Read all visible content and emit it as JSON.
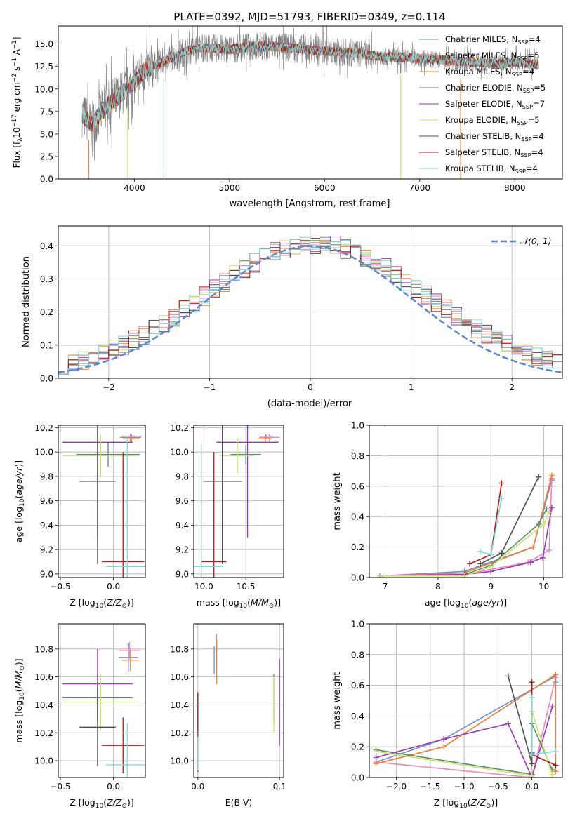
{
  "figure_title": "PLATE=0392, MJD=51793, FIBERID=0349, z=0.114",
  "colors": {
    "Chabrier MILES": "#6a8fd4",
    "Salpeter MILES": "#e789b8",
    "Kroupa MILES": "#ee7d2e",
    "Chabrier ELODIE": "#5b8c6e",
    "Salpeter ELODIE": "#9a38b4",
    "Kroupa ELODIE": "#c9e36a",
    "Chabrier STELIB": "#4d4d4d",
    "Salpeter STELIB": "#b61818",
    "Kroupa STELIB": "#7dd8de",
    "data": "#808080",
    "normal": "#5b88cc"
  },
  "chart_data": [
    {
      "id": "spectrum",
      "type": "line",
      "title": "PLATE=0392, MJD=51793, FIBERID=0349, z=0.114",
      "xlabel": "wavelength [Angstrom, rest frame]",
      "ylabel_parts": [
        "Flux [f",
        "λ",
        "10",
        "−17",
        " erg cm",
        "−2",
        " s",
        "−1",
        " A",
        "−1",
        "]"
      ],
      "xlim": [
        3200,
        8500
      ],
      "ylim": [
        0,
        17
      ],
      "xticks": [
        4000,
        5000,
        6000,
        7000,
        8000
      ],
      "yticks": [
        0.0,
        2.5,
        5.0,
        7.5,
        10.0,
        12.5,
        15.0
      ],
      "ytick_labels": [
        "0.0",
        "2.5",
        "5.0",
        "7.5",
        "10.0",
        "12.5",
        "15.0"
      ],
      "legend": [
        {
          "pre": "Chabrier MILES, N",
          "sub": "SSP",
          "post": "=4",
          "color": "#6a8fd4"
        },
        {
          "pre": "Salpeter MILES, N",
          "sub": "SSP",
          "post": "=5",
          "color": "#e789b8"
        },
        {
          "pre": "Kroupa MILES, N",
          "sub": "SSP",
          "post": "=4",
          "color": "#ee7d2e"
        },
        {
          "pre": "Chabrier ELODIE, N",
          "sub": "SSP",
          "post": "=5",
          "color": "#5b8c6e"
        },
        {
          "pre": "Salpeter ELODIE, N",
          "sub": "SSP",
          "post": "=7",
          "color": "#9a38b4"
        },
        {
          "pre": "Kroupa ELODIE, N",
          "sub": "SSP",
          "post": "=5",
          "color": "#c9e36a"
        },
        {
          "pre": "Chabrier STELIB, N",
          "sub": "SSP",
          "post": "=4",
          "color": "#4d4d4d"
        },
        {
          "pre": "Salpeter STELIB, N",
          "sub": "SSP",
          "post": "=4",
          "color": "#b61818"
        },
        {
          "pre": "Kroupa STELIB, N",
          "sub": "SSP",
          "post": "=4",
          "color": "#7dd8de"
        }
      ],
      "continuum": [
        [
          3450,
          7.2
        ],
        [
          3550,
          6.0
        ],
        [
          3700,
          8.0
        ],
        [
          3850,
          9.3
        ],
        [
          3950,
          10.2
        ],
        [
          4100,
          12.0
        ],
        [
          4300,
          13.0
        ],
        [
          4500,
          14.0
        ],
        [
          4700,
          14.6
        ],
        [
          5000,
          14.4
        ],
        [
          5300,
          14.8
        ],
        [
          5600,
          14.6
        ],
        [
          6000,
          14.2
        ],
        [
          6300,
          14.0
        ],
        [
          6600,
          13.6
        ],
        [
          7000,
          13.4
        ],
        [
          7400,
          13.1
        ],
        [
          7800,
          12.8
        ],
        [
          8000,
          13.0
        ],
        [
          8250,
          12.7
        ]
      ],
      "spikes_down": [
        [
          3520,
          0
        ],
        [
          3930,
          0
        ],
        [
          4310,
          0
        ],
        [
          6800,
          0
        ],
        [
          7430,
          0
        ]
      ]
    },
    {
      "id": "residuals",
      "type": "histogram",
      "xlabel": "(data-model)/error",
      "ylabel": "Normed distribution",
      "xlim": [
        -2.5,
        2.5
      ],
      "ylim": [
        0,
        0.46
      ],
      "xticks": [
        -2,
        -1,
        0,
        1,
        2
      ],
      "xtick_labels": [
        "−2",
        "−1",
        "0",
        "1",
        "2"
      ],
      "yticks": [
        0.0,
        0.1,
        0.2,
        0.3,
        0.4
      ],
      "ytick_labels": [
        "0.0",
        "0.1",
        "0.2",
        "0.3",
        "0.4"
      ],
      "bin_edges_range": [
        -2.5,
        2.5
      ],
      "n_bins": 50,
      "legend_label": "𝒩(0, 1)"
    },
    {
      "id": "age-vs-Z",
      "type": "errorbar",
      "xlabel": "Z [log10(Z/Z⊙)]",
      "ylabel": "age  [log10(age/yr)]",
      "xlim": [
        -0.52,
        0.3
      ],
      "ylim": [
        8.97,
        10.22
      ],
      "xticks": [
        -0.5,
        0.0
      ],
      "xtick_labels": [
        "−0.5",
        "0.0"
      ],
      "yticks": [
        9.0,
        9.2,
        9.4,
        9.6,
        9.8,
        10.0,
        10.2
      ],
      "ytick_labels": [
        "9.0",
        "9.2",
        "9.4",
        "9.6",
        "9.8",
        "10.0",
        "10.2"
      ],
      "points": [
        {
          "model": "Chabrier MILES",
          "x": 0.16,
          "xerr": 0.1,
          "y": 10.12,
          "yerr": 0.03
        },
        {
          "model": "Salpeter MILES",
          "x": 0.17,
          "xerr": 0.09,
          "y": 10.13,
          "yerr": 0.02
        },
        {
          "model": "Kroupa MILES",
          "x": 0.17,
          "xerr": 0.08,
          "y": 10.11,
          "yerr": 0.03
        },
        {
          "model": "Chabrier ELODIE",
          "x": -0.05,
          "xerr": 0.3,
          "y": 9.98,
          "yerr": 0.1
        },
        {
          "model": "Salpeter ELODIE",
          "x": -0.15,
          "xerr": 0.33,
          "y": 10.08,
          "yerr": 0.78
        },
        {
          "model": "Kroupa ELODIE",
          "x": -0.12,
          "xerr": 0.36,
          "y": 9.97,
          "yerr": 0.17
        },
        {
          "model": "Chabrier STELIB",
          "x": -0.15,
          "xerr": 0.17,
          "y": 9.76,
          "yerr": 0.68
        },
        {
          "model": "Salpeter STELIB",
          "x": 0.09,
          "xerr": 0.2,
          "y": 9.1,
          "yerr": 0.9
        },
        {
          "model": "Kroupa STELIB",
          "x": 0.13,
          "xerr": 0.2,
          "y": 9.06,
          "yerr": 1.07
        }
      ]
    },
    {
      "id": "age-vs-mass",
      "type": "errorbar",
      "xlabel": "mass [log10(M/M⊙)]",
      "xlim": [
        9.88,
        10.95
      ],
      "ylim": [
        8.97,
        10.22
      ],
      "xticks": [
        10.0,
        10.5
      ],
      "xtick_labels": [
        "10.0",
        "10.5"
      ],
      "yticks": [
        9.0,
        9.2,
        9.4,
        9.6,
        9.8,
        10.0,
        10.2
      ],
      "ytick_labels": [
        "9.0",
        "9.2",
        "9.4",
        "9.6",
        "9.8",
        "10.0",
        "10.2"
      ],
      "points": [
        {
          "model": "Chabrier MILES",
          "x": 10.74,
          "xerr": 0.09,
          "y": 10.13,
          "yerr": 0.02
        },
        {
          "model": "Salpeter MILES",
          "x": 10.78,
          "xerr": 0.12,
          "y": 10.12,
          "yerr": 0.03
        },
        {
          "model": "Kroupa MILES",
          "x": 10.73,
          "xerr": 0.08,
          "y": 10.11,
          "yerr": 0.03
        },
        {
          "model": "Chabrier ELODIE",
          "x": 10.5,
          "xerr": 0.18,
          "y": 9.98,
          "yerr": 0.08
        },
        {
          "model": "Salpeter ELODIE",
          "x": 10.52,
          "xerr": 0.37,
          "y": 10.08,
          "yerr": 0.78
        },
        {
          "model": "Kroupa ELODIE",
          "x": 10.4,
          "xerr": 0.2,
          "y": 9.97,
          "yerr": 0.15
        },
        {
          "model": "Chabrier STELIB",
          "x": 10.22,
          "xerr": 0.23,
          "y": 9.76,
          "yerr": 0.68
        },
        {
          "model": "Salpeter STELIB",
          "x": 10.12,
          "xerr": 0.15,
          "y": 9.1,
          "yerr": 0.9
        },
        {
          "model": "Kroupa STELIB",
          "x": 9.97,
          "xerr": 0.25,
          "y": 9.06,
          "yerr": 1.0
        }
      ]
    },
    {
      "id": "weight-vs-age",
      "type": "line",
      "xlabel": "age  [log10(age/yr)]",
      "ylabel": "mass weight",
      "xlim": [
        6.7,
        10.35
      ],
      "ylim": [
        0,
        1.0
      ],
      "xticks": [
        7,
        8,
        9,
        10
      ],
      "xtick_labels": [
        "7",
        "8",
        "9",
        "10"
      ],
      "yticks": [
        0.0,
        0.2,
        0.4,
        0.6,
        0.8,
        1.0
      ],
      "ytick_labels": [
        "0.0",
        "0.2",
        "0.4",
        "0.6",
        "0.8",
        "1.0"
      ],
      "series": [
        {
          "model": "Chabrier MILES",
          "x": [
            6.9,
            8.5,
            9.8,
            10.15
          ],
          "y": [
            0.01,
            0.04,
            0.2,
            0.64
          ]
        },
        {
          "model": "Salpeter MILES",
          "x": [
            6.9,
            8.5,
            9.7,
            10.1,
            10.15
          ],
          "y": [
            0.01,
            0.02,
            0.1,
            0.18,
            0.65
          ]
        },
        {
          "model": "Kroupa MILES",
          "x": [
            6.9,
            8.5,
            9.8,
            10.15
          ],
          "y": [
            0.01,
            0.03,
            0.2,
            0.67
          ]
        },
        {
          "model": "Chabrier ELODIE",
          "x": [
            6.9,
            8.5,
            9.0,
            9.9,
            10.05
          ],
          "y": [
            0.01,
            0.02,
            0.08,
            0.35,
            0.45
          ]
        },
        {
          "model": "Salpeter ELODIE",
          "x": [
            6.9,
            8.5,
            9.0,
            9.75,
            9.98,
            10.15
          ],
          "y": [
            0.01,
            0.02,
            0.04,
            0.1,
            0.13,
            0.46
          ]
        },
        {
          "model": "Kroupa ELODIE",
          "x": [
            6.9,
            8.5,
            9.0,
            10.0,
            10.1
          ],
          "y": [
            0.01,
            0.01,
            0.07,
            0.35,
            0.43
          ]
        },
        {
          "model": "Chabrier STELIB",
          "x": [
            8.8,
            9.2,
            9.9
          ],
          "y": [
            0.09,
            0.16,
            0.66
          ]
        },
        {
          "model": "Salpeter STELIB",
          "x": [
            8.6,
            9.0,
            9.2
          ],
          "y": [
            0.09,
            0.15,
            0.62
          ]
        },
        {
          "model": "Kroupa STELIB",
          "x": [
            8.8,
            9.0,
            9.2
          ],
          "y": [
            0.17,
            0.15,
            0.52
          ]
        }
      ]
    },
    {
      "id": "mass-vs-Z",
      "type": "errorbar",
      "xlabel": "Z [log10(Z/Z⊙)]",
      "ylabel": "mass [log10(M/M⊙)]",
      "xlim": [
        -0.52,
        0.3
      ],
      "ylim": [
        9.88,
        10.98
      ],
      "xticks": [
        -0.5,
        0.0
      ],
      "xtick_labels": [
        "−0.5",
        "0.0"
      ],
      "yticks": [
        10.0,
        10.2,
        10.4,
        10.6,
        10.8
      ],
      "ytick_labels": [
        "10.0",
        "10.2",
        "10.4",
        "10.6",
        "10.8"
      ],
      "points": [
        {
          "model": "Chabrier MILES",
          "x": 0.14,
          "xerr": 0.09,
          "y": 10.74,
          "yerr": 0.1
        },
        {
          "model": "Salpeter MILES",
          "x": 0.15,
          "xerr": 0.1,
          "y": 10.79,
          "yerr": 0.06
        },
        {
          "model": "Kroupa MILES",
          "x": 0.16,
          "xerr": 0.08,
          "y": 10.72,
          "yerr": 0.08
        },
        {
          "model": "Chabrier ELODIE",
          "x": -0.15,
          "xerr": 0.33,
          "y": 10.45,
          "yerr": 0.17
        },
        {
          "model": "Salpeter ELODIE",
          "x": -0.15,
          "xerr": 0.33,
          "y": 10.55,
          "yerr": 0.25
        },
        {
          "model": "Kroupa ELODIE",
          "x": -0.12,
          "xerr": 0.36,
          "y": 10.42,
          "yerr": 0.2
        },
        {
          "model": "Chabrier STELIB",
          "x": -0.15,
          "xerr": 0.17,
          "y": 10.24,
          "yerr": 0.28
        },
        {
          "model": "Salpeter STELIB",
          "x": 0.09,
          "xerr": 0.2,
          "y": 10.11,
          "yerr": 0.2
        },
        {
          "model": "Kroupa STELIB",
          "x": 0.13,
          "xerr": 0.2,
          "y": 9.97,
          "yerr": 0.3
        }
      ]
    },
    {
      "id": "mass-vs-ebv",
      "type": "errorbar",
      "xlabel": "E(B-V)",
      "xlim": [
        -0.005,
        0.105
      ],
      "ylim": [
        9.88,
        10.98
      ],
      "xticks": [
        0.0,
        0.1
      ],
      "xtick_labels": [
        "0.0",
        "0.1"
      ],
      "yticks": [
        10.0,
        10.2,
        10.4,
        10.6,
        10.8
      ],
      "ytick_labels": [
        "10.0",
        "10.2",
        "10.4",
        "10.6",
        "10.8"
      ],
      "points": [
        {
          "model": "Chabrier MILES",
          "x": 0.02,
          "y": 10.72,
          "yerr": 0.1
        },
        {
          "model": "Salpeter MILES",
          "x": 0.023,
          "y": 10.79,
          "yerr": 0.12
        },
        {
          "model": "Kroupa MILES",
          "x": 0.023,
          "y": 10.71,
          "yerr": 0.16
        },
        {
          "model": "Chabrier ELODIE",
          "x": 0.093,
          "y": 10.45,
          "yerr": 0.17
        },
        {
          "model": "Salpeter ELODIE",
          "x": 0.1,
          "y": 10.42,
          "yerr": 0.31
        },
        {
          "model": "Kroupa ELODIE",
          "x": 0.093,
          "y": 10.4,
          "yerr": 0.2
        },
        {
          "model": "Chabrier STELIB",
          "x": 0.0,
          "y": 10.2,
          "yerr": 0.28
        },
        {
          "model": "Salpeter STELIB",
          "x": 0.0,
          "y": 10.35,
          "yerr": 0.14
        },
        {
          "model": "Kroupa STELIB",
          "x": 0.0,
          "y": 10.05,
          "yerr": 0.12
        }
      ]
    },
    {
      "id": "weight-vs-Z",
      "type": "line",
      "xlabel": "Z [log10(Z/Z⊙)]",
      "ylabel": "mass weight",
      "xlim": [
        -2.4,
        0.45
      ],
      "ylim": [
        0,
        1.0
      ],
      "xticks": [
        -2.0,
        -1.5,
        -1.0,
        -0.5,
        0.0
      ],
      "xtick_labels": [
        "−2.0",
        "−1.5",
        "−1.0",
        "−0.5",
        "0.0"
      ],
      "yticks": [
        0.0,
        0.2,
        0.4,
        0.6,
        0.8,
        1.0
      ],
      "ytick_labels": [
        "0.0",
        "0.2",
        "0.4",
        "0.6",
        "0.8",
        "1.0"
      ],
      "series": [
        {
          "model": "Chabrier MILES",
          "x": [
            -2.3,
            -1.3,
            0.35,
            0.35
          ],
          "y": [
            0.1,
            0.25,
            0.66,
            0.62
          ]
        },
        {
          "model": "Salpeter MILES",
          "x": [
            -2.3,
            0.0,
            0.35
          ],
          "y": [
            0.1,
            0.0,
            0.65
          ]
        },
        {
          "model": "Kroupa MILES",
          "x": [
            -2.3,
            -1.3,
            0.35,
            0.35
          ],
          "y": [
            0.09,
            0.2,
            0.67,
            0.04
          ]
        },
        {
          "model": "Chabrier ELODIE",
          "x": [
            -2.3,
            0.0,
            0.0,
            0.3
          ],
          "y": [
            0.18,
            0.02,
            0.35,
            0.05
          ]
        },
        {
          "model": "Salpeter ELODIE",
          "x": [
            -2.3,
            -1.3,
            -0.35,
            0.0,
            0.3
          ],
          "y": [
            0.13,
            0.25,
            0.35,
            0.0,
            0.46
          ]
        },
        {
          "model": "Kroupa ELODIE",
          "x": [
            -2.3,
            0.0,
            0.0,
            0.3
          ],
          "y": [
            0.17,
            0.01,
            0.43,
            0.02
          ]
        },
        {
          "model": "Chabrier STELIB",
          "x": [
            -0.35,
            0.0,
            0.0
          ],
          "y": [
            0.66,
            0.09,
            0.16
          ]
        },
        {
          "model": "Salpeter STELIB",
          "x": [
            0.0,
            0.0,
            0.35
          ],
          "y": [
            0.62,
            0.15,
            0.08
          ]
        },
        {
          "model": "Kroupa STELIB",
          "x": [
            0.0,
            0.0,
            0.35
          ],
          "y": [
            0.52,
            0.15,
            0.17
          ]
        }
      ]
    }
  ]
}
